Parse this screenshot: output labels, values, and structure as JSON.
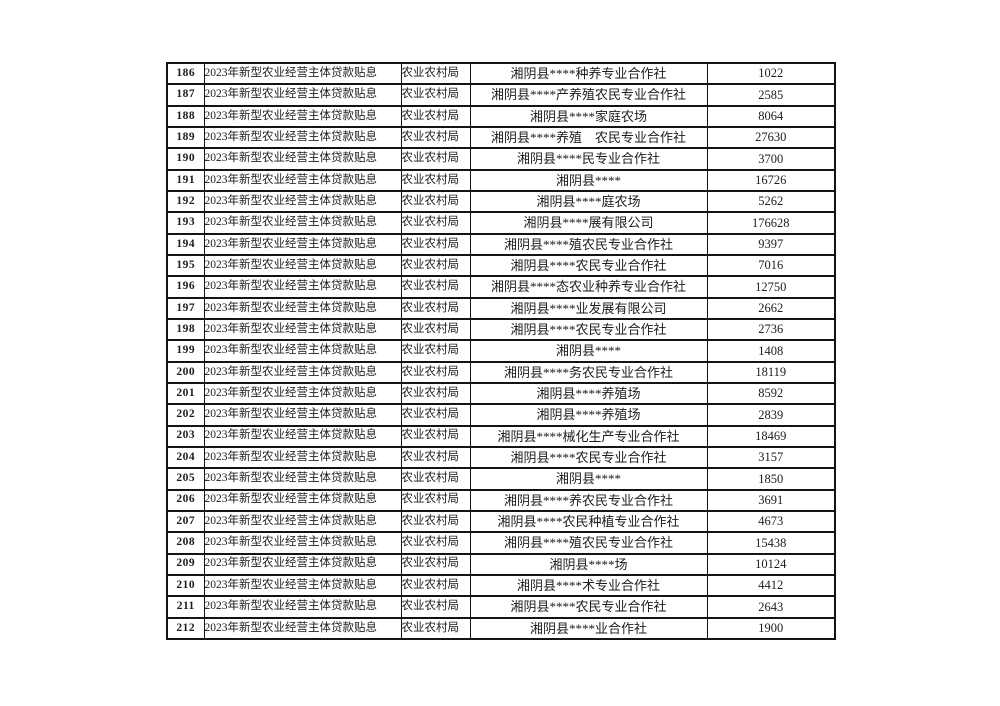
{
  "document": {
    "type": "subsidy-table-page",
    "project_label": "2023年新型农业经营主体贷款贴息",
    "department_label": "农业农村局",
    "entity_prefix": "湘阴县****",
    "row_range": "186-212"
  },
  "table": {
    "rows": [
      {
        "no": "186",
        "project": "2023年新型农业经营主体贷款贴息",
        "dept": "农业农村局",
        "name": "湘阴县****种养专业合作社",
        "amount": "1022"
      },
      {
        "no": "187",
        "project": "2023年新型农业经营主体贷款贴息",
        "dept": "农业农村局",
        "name": "湘阴县****产养殖农民专业合作社",
        "amount": "2585"
      },
      {
        "no": "188",
        "project": "2023年新型农业经营主体贷款贴息",
        "dept": "农业农村局",
        "name": "湘阴县****家庭农场",
        "amount": "8064"
      },
      {
        "no": "189",
        "project": "2023年新型农业经营主体贷款贴息",
        "dept": "农业农村局",
        "name": "湘阴县****养殖　农民专业合作社",
        "amount": "27630"
      },
      {
        "no": "190",
        "project": "2023年新型农业经营主体贷款贴息",
        "dept": "农业农村局",
        "name": "湘阴县****民专业合作社",
        "amount": "3700"
      },
      {
        "no": "191",
        "project": "2023年新型农业经营主体贷款贴息",
        "dept": "农业农村局",
        "name": "湘阴县****",
        "amount": "16726"
      },
      {
        "no": "192",
        "project": "2023年新型农业经营主体贷款贴息",
        "dept": "农业农村局",
        "name": "湘阴县****庭农场",
        "amount": "5262"
      },
      {
        "no": "193",
        "project": "2023年新型农业经营主体贷款贴息",
        "dept": "农业农村局",
        "name": "湘阴县****展有限公司",
        "amount": "176628"
      },
      {
        "no": "194",
        "project": "2023年新型农业经营主体贷款贴息",
        "dept": "农业农村局",
        "name": "湘阴县****殖农民专业合作社",
        "amount": "9397"
      },
      {
        "no": "195",
        "project": "2023年新型农业经营主体贷款贴息",
        "dept": "农业农村局",
        "name": "湘阴县****农民专业合作社",
        "amount": "7016"
      },
      {
        "no": "196",
        "project": "2023年新型农业经营主体贷款贴息",
        "dept": "农业农村局",
        "name": "湘阴县****态农业种养专业合作社",
        "amount": "12750"
      },
      {
        "no": "197",
        "project": "2023年新型农业经营主体贷款贴息",
        "dept": "农业农村局",
        "name": "湘阴县****业发展有限公司",
        "amount": "2662"
      },
      {
        "no": "198",
        "project": "2023年新型农业经营主体贷款贴息",
        "dept": "农业农村局",
        "name": "湘阴县****农民专业合作社",
        "amount": "2736"
      },
      {
        "no": "199",
        "project": "2023年新型农业经营主体贷款贴息",
        "dept": "农业农村局",
        "name": "湘阴县****",
        "amount": "1408"
      },
      {
        "no": "200",
        "project": "2023年新型农业经营主体贷款贴息",
        "dept": "农业农村局",
        "name": "湘阴县****务农民专业合作社",
        "amount": "18119"
      },
      {
        "no": "201",
        "project": "2023年新型农业经营主体贷款贴息",
        "dept": "农业农村局",
        "name": "湘阴县****养殖场",
        "amount": "8592"
      },
      {
        "no": "202",
        "project": "2023年新型农业经营主体贷款贴息",
        "dept": "农业农村局",
        "name": "湘阴县****养殖场",
        "amount": "2839"
      },
      {
        "no": "203",
        "project": "2023年新型农业经营主体贷款贴息",
        "dept": "农业农村局",
        "name": "湘阴县****械化生产专业合作社",
        "amount": "18469"
      },
      {
        "no": "204",
        "project": "2023年新型农业经营主体贷款贴息",
        "dept": "农业农村局",
        "name": "湘阴县****农民专业合作社",
        "amount": "3157"
      },
      {
        "no": "205",
        "project": "2023年新型农业经营主体贷款贴息",
        "dept": "农业农村局",
        "name": "湘阴县****",
        "amount": "1850"
      },
      {
        "no": "206",
        "project": "2023年新型农业经营主体贷款贴息",
        "dept": "农业农村局",
        "name": "湘阴县****养农民专业合作社",
        "amount": "3691"
      },
      {
        "no": "207",
        "project": "2023年新型农业经营主体贷款贴息",
        "dept": "农业农村局",
        "name": "湘阴县****农民种植专业合作社",
        "amount": "4673"
      },
      {
        "no": "208",
        "project": "2023年新型农业经营主体贷款贴息",
        "dept": "农业农村局",
        "name": "湘阴县****殖农民专业合作社",
        "amount": "15438"
      },
      {
        "no": "209",
        "project": "2023年新型农业经营主体贷款贴息",
        "dept": "农业农村局",
        "name": "湘阴县****场",
        "amount": "10124"
      },
      {
        "no": "210",
        "project": "2023年新型农业经营主体贷款贴息",
        "dept": "农业农村局",
        "name": "湘阴县****术专业合作社",
        "amount": "4412"
      },
      {
        "no": "211",
        "project": "2023年新型农业经营主体贷款贴息",
        "dept": "农业农村局",
        "name": "湘阴县****农民专业合作社",
        "amount": "2643"
      },
      {
        "no": "212",
        "project": "2023年新型农业经营主体贷款贴息",
        "dept": "农业农村局",
        "name": "湘阴县****业合作社",
        "amount": "1900"
      }
    ]
  }
}
